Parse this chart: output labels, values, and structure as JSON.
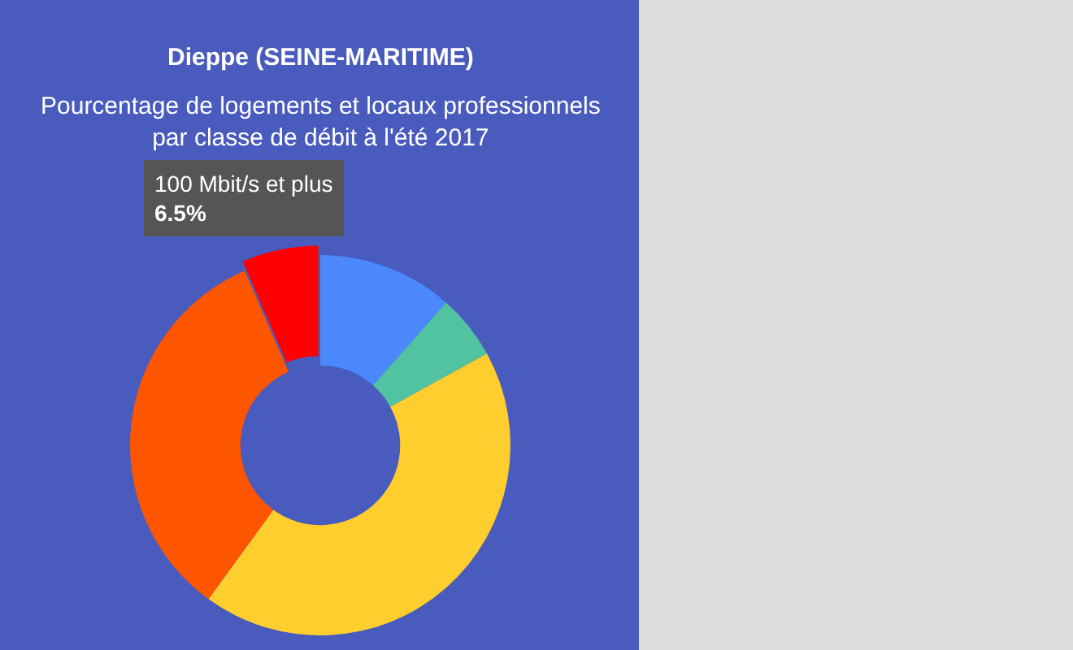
{
  "chart_data": {
    "type": "donut",
    "title": "Dieppe (SEINE-MARITIME)",
    "subtitle": "Pourcentage de logements et locaux professionnels par classe de débit à l'été 2017",
    "categories": [
      null,
      null,
      null,
      null,
      "100 Mbit/s et plus"
    ],
    "values": [
      11.5,
      5.5,
      43,
      33.5,
      6.5
    ],
    "colors": [
      "#4a88fc",
      "#52c3a1",
      "#fecd2e",
      "#fe5500",
      "#fe0000"
    ],
    "value_labels": [
      null,
      null,
      null,
      null,
      "6.5%"
    ]
  }
}
